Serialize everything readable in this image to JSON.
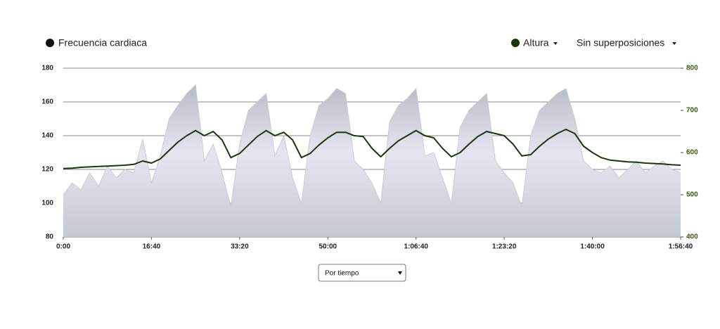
{
  "chart_data": {
    "type": "area",
    "x": [
      0,
      100,
      200,
      300,
      400,
      500,
      600,
      700,
      800,
      900,
      1000,
      1100,
      1200,
      1300,
      1400,
      1500,
      1600,
      1700,
      1800,
      1900,
      2000,
      2100,
      2200,
      2300,
      2400,
      2500,
      2600,
      2700,
      2800,
      2900,
      3000,
      3100,
      3200,
      3300,
      3400,
      3500,
      3600,
      3700,
      3800,
      3900,
      4000,
      4100,
      4200,
      4300,
      4400,
      4500,
      4600,
      4700,
      4800,
      4900,
      5000,
      5100,
      5200,
      5300,
      5400,
      5500,
      5600,
      5700,
      5800,
      5900,
      6000,
      6100,
      6200,
      6300,
      6400,
      6500,
      6600,
      6700,
      6800,
      6900,
      7000
    ],
    "series": [
      {
        "name": "Frecuencia cardiaca",
        "type": "area",
        "color": "#c9ccd3",
        "values": [
          105,
          112,
          108,
          118,
          110,
          122,
          115,
          120,
          118,
          138,
          112,
          128,
          150,
          158,
          165,
          170,
          125,
          135,
          118,
          98,
          135,
          155,
          160,
          165,
          128,
          140,
          115,
          100,
          140,
          158,
          162,
          168,
          165,
          125,
          120,
          112,
          100,
          148,
          158,
          162,
          168,
          128,
          130,
          115,
          100,
          145,
          155,
          160,
          165,
          125,
          118,
          112,
          98,
          140,
          155,
          160,
          165,
          168,
          150,
          125,
          120,
          118,
          122,
          115,
          120,
          125,
          118,
          122,
          125,
          120,
          118
        ]
      },
      {
        "name": "Altura",
        "type": "line",
        "axis": "y2",
        "color": "#173a0c",
        "values": [
          562,
          563,
          565,
          566,
          567,
          568,
          569,
          570,
          572,
          580,
          575,
          585,
          605,
          625,
          640,
          652,
          640,
          650,
          630,
          588,
          598,
          618,
          638,
          652,
          640,
          648,
          630,
          588,
          598,
          618,
          635,
          648,
          648,
          640,
          638,
          610,
          590,
          610,
          628,
          640,
          652,
          640,
          635,
          610,
          590,
          600,
          620,
          638,
          650,
          645,
          640,
          620,
          592,
          595,
          615,
          632,
          645,
          655,
          645,
          615,
          600,
          588,
          582,
          580,
          578,
          577,
          575,
          574,
          573,
          571,
          570
        ]
      }
    ],
    "xlim": [
      0,
      7000
    ],
    "xticks": [
      {
        "value": 0,
        "label": "0:00"
      },
      {
        "value": 1000,
        "label": "16:40"
      },
      {
        "value": 2000,
        "label": "33:20"
      },
      {
        "value": 3000,
        "label": "50:00"
      },
      {
        "value": 4000,
        "label": "1:06:40"
      },
      {
        "value": 5000,
        "label": "1:23:20"
      },
      {
        "value": 6000,
        "label": "1:40:00"
      },
      {
        "value": 7000,
        "label": "1:56:40"
      }
    ],
    "ylim": [
      80,
      180
    ],
    "yticks": [
      80,
      100,
      120,
      140,
      160,
      180
    ],
    "y2lim": [
      400,
      800
    ],
    "y2ticks": [
      400,
      500,
      600,
      700,
      800
    ],
    "grid": true
  },
  "controls": {
    "overlay": "Sin superposiciones",
    "mode": "Por tiempo"
  }
}
